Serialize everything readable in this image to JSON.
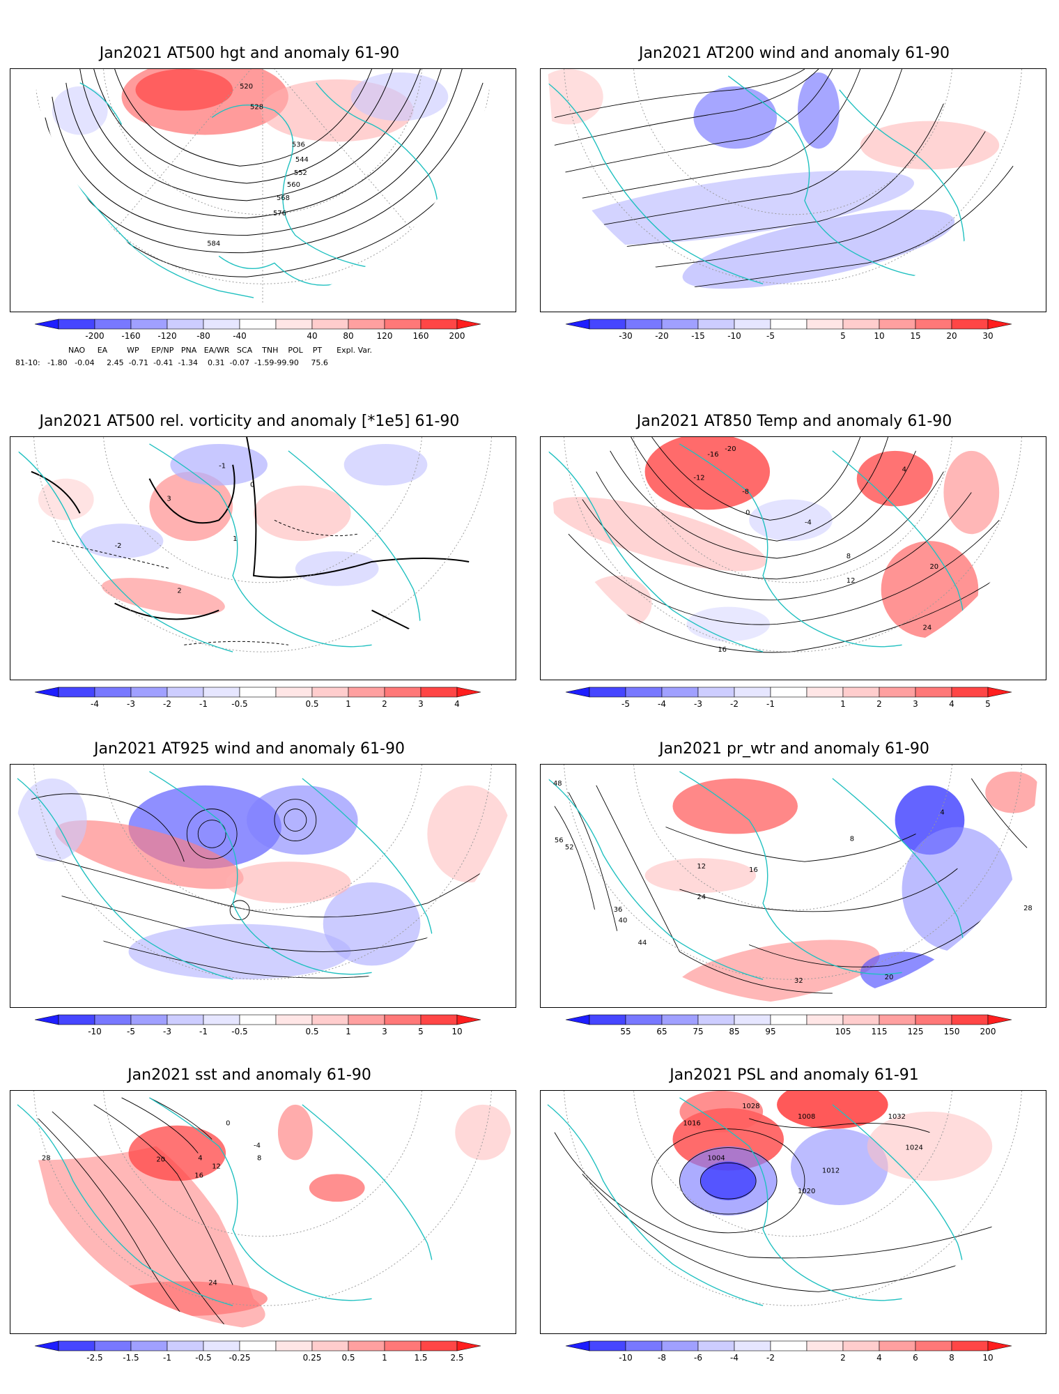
{
  "panels": [
    {
      "title": "Jan2021 AT500 hgt and anomaly 61-90",
      "colorbar": {
        "ticks": [
          "-200",
          "-160",
          "-120",
          "-80",
          "-40",
          "40",
          "80",
          "120",
          "160",
          "200"
        ],
        "colors": [
          "#1e1eff",
          "#4646ff",
          "#7878ff",
          "#a0a0ff",
          "#cdcdff",
          "#e6e6ff",
          "#ffffff",
          "#ffe6e6",
          "#ffcdcd",
          "#ffa0a0",
          "#ff7878",
          "#ff4646",
          "#ff1e1e"
        ]
      },
      "contour_labels": [
        "520",
        "528",
        "536",
        "544",
        "552",
        "560",
        "568",
        "576",
        "584"
      ],
      "indices": {
        "headers": [
          "NAO",
          "EA",
          "WP",
          "EP/NP",
          "PNA",
          "EA/WR",
          "SCA",
          "TNH",
          "POL",
          "PT",
          "Expl. Var."
        ],
        "row_label": "81-10:",
        "values": [
          "-1.80",
          "-0.04",
          "2.45",
          "-0.71",
          "-0.41",
          "-1.34",
          "0.31",
          "-0.07",
          "-1.59",
          "-99.90",
          "75.6"
        ]
      }
    },
    {
      "title": "Jan2021 AT200 wind and anomaly 61-90",
      "colorbar": {
        "ticks": [
          "-30",
          "-20",
          "-15",
          "-10",
          "-5",
          "5",
          "10",
          "15",
          "20",
          "30"
        ]
      }
    },
    {
      "title": "Jan2021 AT500 rel. vorticity and anomaly [*1e5] 61-90",
      "colorbar": {
        "ticks": [
          "-4",
          "-3",
          "-2",
          "-1",
          "-0.5",
          "0.5",
          "1",
          "2",
          "3",
          "4"
        ]
      },
      "contour_labels": [
        "-2",
        "-1",
        "0",
        "1",
        "2",
        "3"
      ]
    },
    {
      "title": "Jan2021 AT850 Temp and anomaly 61-90",
      "colorbar": {
        "ticks": [
          "-5",
          "-4",
          "-3",
          "-2",
          "-1",
          "1",
          "2",
          "3",
          "4",
          "5"
        ]
      },
      "contour_labels": [
        "-20",
        "-16",
        "-12",
        "-8",
        "-4",
        "0",
        "4",
        "8",
        "12",
        "16",
        "20",
        "24"
      ]
    },
    {
      "title": "Jan2021 AT925 wind and anomaly 61-90",
      "colorbar": {
        "ticks": [
          "-10",
          "-5",
          "-3",
          "-1",
          "-0.5",
          "0.5",
          "1",
          "3",
          "5",
          "10"
        ]
      }
    },
    {
      "title": "Jan2021 pr_wtr and anomaly 61-90",
      "colorbar": {
        "ticks": [
          "55",
          "65",
          "75",
          "85",
          "95",
          "105",
          "115",
          "125",
          "150",
          "200"
        ]
      },
      "contour_labels": [
        "4",
        "8",
        "12",
        "16",
        "20",
        "24",
        "28",
        "32",
        "36",
        "40",
        "44",
        "48",
        "52",
        "56"
      ]
    },
    {
      "title": "Jan2021 sst and anomaly 61-90",
      "colorbar": {
        "ticks": [
          "-2.5",
          "-1.5",
          "-1",
          "-0.5",
          "-0.25",
          "0.25",
          "0.5",
          "1",
          "1.5",
          "2.5"
        ]
      },
      "contour_labels": [
        "-4",
        "0",
        "4",
        "8",
        "12",
        "16",
        "20",
        "24",
        "28"
      ]
    },
    {
      "title": "Jan2021 PSL and anomaly 61-91",
      "colorbar": {
        "ticks": [
          "-10",
          "-8",
          "-6",
          "-4",
          "-2",
          "2",
          "4",
          "6",
          "8",
          "10"
        ]
      },
      "contour_labels": [
        "1004",
        "1008",
        "1012",
        "1016",
        "1020",
        "1024",
        "1028",
        "1032"
      ]
    }
  ],
  "colors": {
    "coastline": "#20c0c0",
    "contour": "#000000",
    "blue_strong": "#1e1eff",
    "red_strong": "#ff1e1e",
    "grid": "#9a9a9a"
  }
}
